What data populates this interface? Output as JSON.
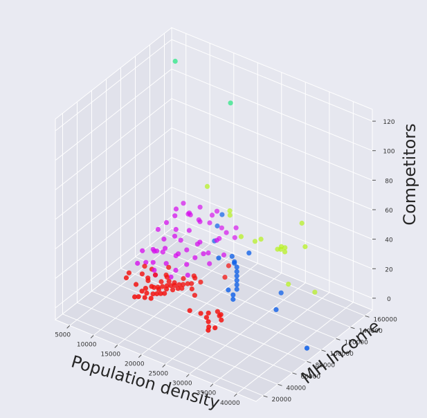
{
  "chart_data": {
    "type": "scatter",
    "projection": "3d",
    "xlabel": "Population density",
    "ylabel": "MH Income",
    "zlabel": "Competitors",
    "x_ticks": [
      "5000",
      "10000",
      "15000",
      "20000",
      "25000",
      "30000",
      "35000",
      "40000"
    ],
    "y_ticks": [
      "20000",
      "40000",
      "60000",
      "80000",
      "100000",
      "120000",
      "140000",
      "160000"
    ],
    "z_ticks": [
      "0",
      "20",
      "40",
      "60",
      "80",
      "100",
      "120"
    ],
    "xlim": [
      2000,
      44000
    ],
    "ylim": [
      10000,
      170000
    ],
    "zlim": [
      -8,
      128
    ],
    "grid": true,
    "colors": {
      "pane_back": "#e6e7ef",
      "pane_side": "#e1e2eb",
      "pane_floor": "#dbdce6",
      "cluster_green": "#1de87c",
      "cluster_lime": "#b5f21a",
      "cluster_blue": "#0b5ee8",
      "cluster_magenta": "#d511ec",
      "cluster_red": "#f21512"
    },
    "series": [
      {
        "color": "#1de87c",
        "points": [
          [
            5800,
            150000,
            118
          ],
          [
            16600,
            155000,
            102
          ]
        ]
      },
      {
        "color": "#b5f21a",
        "points": [
          [
            12500,
            150000,
            42
          ],
          [
            16000,
            158000,
            27
          ],
          [
            16800,
            153000,
            27
          ],
          [
            24500,
            145000,
            24
          ],
          [
            22500,
            150000,
            18
          ],
          [
            20800,
            142000,
            22
          ],
          [
            27500,
            148000,
            20
          ],
          [
            28500,
            146000,
            22
          ],
          [
            29500,
            145000,
            22
          ],
          [
            28600,
            146000,
            24
          ],
          [
            29300,
            146500,
            24
          ],
          [
            32000,
            152000,
            42
          ],
          [
            34500,
            140000,
            34
          ],
          [
            31000,
            140000,
            4
          ],
          [
            35000,
            150000,
            0
          ]
        ]
      },
      {
        "color": "#0b5ee8",
        "points": [
          [
            14000,
            150000,
            7
          ],
          [
            14600,
            150000,
            18
          ],
          [
            15600,
            150000,
            27
          ],
          [
            22500,
            100000,
            26
          ],
          [
            25800,
            120000,
            26
          ],
          [
            23000,
            115000,
            22
          ],
          [
            23500,
            115000,
            19
          ],
          [
            24000,
            115000,
            16
          ],
          [
            24000,
            115000,
            13
          ],
          [
            24000,
            115000,
            10
          ],
          [
            24000,
            115000,
            7
          ],
          [
            24000,
            115000,
            4
          ],
          [
            24000,
            115000,
            1
          ],
          [
            23500,
            115000,
            18
          ],
          [
            24500,
            100000,
            7
          ],
          [
            25500,
            100000,
            5
          ],
          [
            25500,
            100000,
            2
          ],
          [
            33000,
            110000,
            1
          ],
          [
            44000,
            80000,
            1
          ],
          [
            31000,
            130000,
            2
          ]
        ]
      },
      {
        "color": "#d511ec",
        "points": [
          [
            5500,
            100000,
            0
          ],
          [
            6500,
            120000,
            2
          ],
          [
            7000,
            130000,
            18
          ],
          [
            8000,
            135000,
            22
          ],
          [
            7500,
            140000,
            24
          ],
          [
            8500,
            150000,
            18
          ],
          [
            6500,
            115000,
            5
          ],
          [
            7500,
            110000,
            7
          ],
          [
            8000,
            120000,
            12
          ],
          [
            9000,
            115000,
            9
          ],
          [
            9500,
            125000,
            14
          ],
          [
            10000,
            130000,
            10
          ],
          [
            10500,
            120000,
            4
          ],
          [
            11000,
            135000,
            16
          ],
          [
            11500,
            145000,
            20
          ],
          [
            12500,
            140000,
            22
          ],
          [
            13000,
            150000,
            18
          ],
          [
            13500,
            130000,
            12
          ],
          [
            12000,
            125000,
            8
          ],
          [
            8000,
            105000,
            2
          ],
          [
            7000,
            125000,
            0
          ],
          [
            9000,
            100000,
            0
          ],
          [
            10000,
            110000,
            2
          ],
          [
            11000,
            120000,
            6
          ],
          [
            12000,
            110000,
            0
          ],
          [
            13500,
            115000,
            4
          ],
          [
            14500,
            120000,
            8
          ],
          [
            15500,
            125000,
            10
          ],
          [
            14000,
            130000,
            14
          ],
          [
            16000,
            140000,
            14
          ],
          [
            16500,
            150000,
            16
          ],
          [
            17000,
            160000,
            16
          ],
          [
            17500,
            155000,
            12
          ],
          [
            15000,
            150000,
            10
          ],
          [
            10500,
            140000,
            24
          ],
          [
            11000,
            150000,
            26
          ],
          [
            9500,
            145000,
            22
          ],
          [
            13000,
            160000,
            22
          ],
          [
            12000,
            160000,
            18
          ],
          [
            14000,
            160000,
            12
          ],
          [
            12500,
            100000,
            0
          ],
          [
            10000,
            95000,
            0
          ],
          [
            5000,
            110000,
            4
          ],
          [
            6500,
            105000,
            0
          ],
          [
            9000,
            130000,
            16
          ],
          [
            6000,
            125000,
            14
          ],
          [
            15000,
            135000,
            6
          ],
          [
            16000,
            130000,
            2
          ],
          [
            17500,
            140000,
            6
          ],
          [
            14500,
            110000,
            0
          ],
          [
            7500,
            150000,
            24
          ]
        ]
      },
      {
        "color": "#f21512",
        "points": [
          [
            6000,
            85000,
            0
          ],
          [
            8000,
            90000,
            0
          ],
          [
            10000,
            85000,
            0
          ],
          [
            12000,
            90000,
            0
          ],
          [
            14000,
            95000,
            0
          ],
          [
            11000,
            70000,
            0
          ],
          [
            9000,
            75000,
            0
          ],
          [
            11500,
            80000,
            0
          ],
          [
            12500,
            82000,
            0
          ],
          [
            13000,
            85000,
            0
          ],
          [
            13500,
            88000,
            0
          ],
          [
            14000,
            90000,
            0
          ],
          [
            14500,
            92000,
            0
          ],
          [
            15000,
            95000,
            0
          ],
          [
            15500,
            97000,
            0
          ],
          [
            16000,
            100000,
            0
          ],
          [
            16500,
            102000,
            0
          ],
          [
            13000,
            72000,
            0
          ],
          [
            13500,
            74000,
            0
          ],
          [
            14000,
            76000,
            0
          ],
          [
            14500,
            78000,
            0
          ],
          [
            12000,
            70000,
            0
          ],
          [
            11000,
            60000,
            0
          ],
          [
            11500,
            62000,
            0
          ],
          [
            12500,
            64000,
            0
          ],
          [
            14000,
            84000,
            0
          ],
          [
            15000,
            86000,
            0
          ],
          [
            13000,
            94000,
            0
          ],
          [
            12000,
            98000,
            0
          ],
          [
            14500,
            104000,
            0
          ],
          [
            10000,
            95000,
            0
          ],
          [
            8500,
            100000,
            0
          ],
          [
            7000,
            100000,
            0
          ],
          [
            13500,
            66000,
            0
          ],
          [
            12000,
            80000,
            0
          ],
          [
            16000,
            110000,
            0
          ],
          [
            15500,
            112000,
            0
          ],
          [
            17500,
            108000,
            0
          ],
          [
            9500,
            88000,
            0
          ],
          [
            6500,
            78000,
            0
          ],
          [
            13000,
            80000,
            0
          ],
          [
            11000,
            75000,
            0
          ],
          [
            15500,
            90000,
            0
          ],
          [
            16000,
            92000,
            0
          ],
          [
            10500,
            110000,
            0
          ],
          [
            17500,
            96000,
            0
          ],
          [
            19000,
            90000,
            0
          ],
          [
            21000,
            70000,
            0
          ],
          [
            23000,
            72000,
            0
          ],
          [
            24000,
            76000,
            0
          ],
          [
            24500,
            70000,
            0
          ],
          [
            26000,
            78000,
            0
          ],
          [
            27000,
            74000,
            0
          ],
          [
            25500,
            66000,
            0
          ],
          [
            26500,
            60000,
            0
          ],
          [
            27500,
            62000,
            0
          ],
          [
            27000,
            56000,
            0
          ],
          [
            26000,
            80000,
            0
          ],
          [
            25000,
            82000,
            0
          ],
          [
            18500,
            140000,
            0
          ],
          [
            20000,
            125000,
            0
          ],
          [
            11500,
            100000,
            0
          ]
        ]
      }
    ]
  }
}
